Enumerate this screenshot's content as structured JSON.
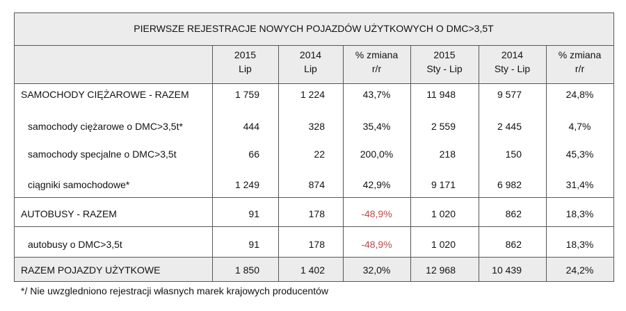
{
  "title": "PIERWSZE REJESTRACJE NOWYCH POJAZDÓW UŻYTKOWYCH O DMC>3,5T",
  "header": [
    [
      "2015",
      "Lip"
    ],
    [
      "2014",
      "Lip"
    ],
    [
      "% zmiana",
      "r/r"
    ],
    [
      "2015",
      "Sty - Lip"
    ],
    [
      "2014",
      "Sty - Lip"
    ],
    [
      "% zmiana",
      "r/r"
    ]
  ],
  "rows": [
    {
      "label": "SAMOCHODY CIĘŻAROWE - RAZEM",
      "cells": [
        "1 759",
        "1 224",
        "43,7%",
        "11 948",
        "9 577",
        "24,8%"
      ]
    },
    {
      "label": "samochody ciężarowe o DMC>3,5t*",
      "cells": [
        "444",
        "328",
        "35,4%",
        "2 559",
        "2 445",
        "4,7%"
      ]
    },
    {
      "label": "samochody specjalne o DMC>3,5t",
      "cells": [
        "66",
        "22",
        "200,0%",
        "218",
        "150",
        "45,3%"
      ]
    },
    {
      "label": "ciągniki samochodowe*",
      "cells": [
        "1 249",
        "874",
        "42,9%",
        "9 171",
        "6 982",
        "31,4%"
      ]
    },
    {
      "label": "AUTOBUSY - RAZEM",
      "cells": [
        "91",
        "178",
        "-48,9%",
        "1 020",
        "862",
        "18,3%"
      ]
    },
    {
      "label": "autobusy o DMC>3,5t",
      "cells": [
        "91",
        "178",
        "-48,9%",
        "1 020",
        "862",
        "18,3%"
      ]
    },
    {
      "label": "RAZEM POJAZDY UŻYTKOWE",
      "cells": [
        "1 850",
        "1 402",
        "32,0%",
        "12 968",
        "10 439",
        "24,2%"
      ]
    }
  ],
  "footnote": "*/ Nie uwzgledniono rejestracji własnych marek krajowych producentów"
}
